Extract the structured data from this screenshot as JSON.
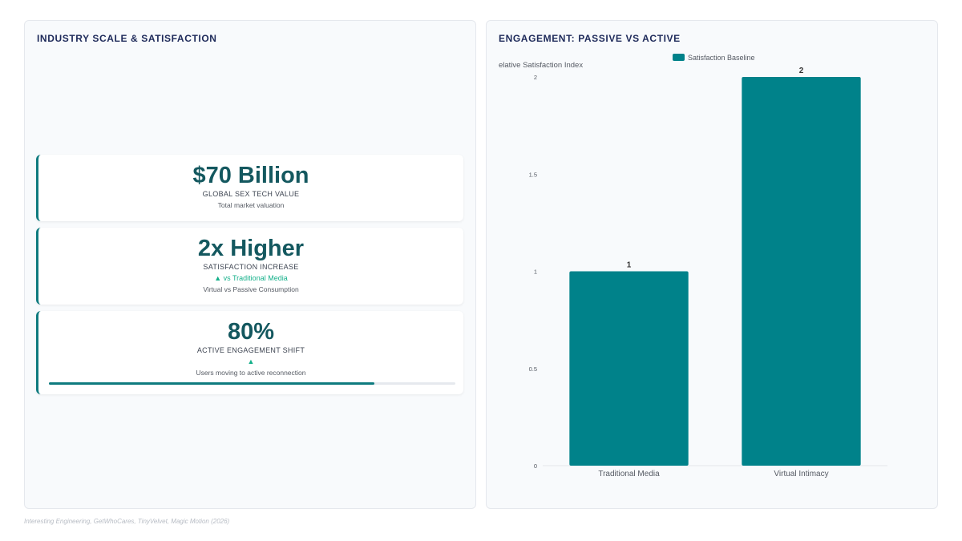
{
  "left_panel": {
    "title": "INDUSTRY SCALE & SATISFACTION",
    "cards": [
      {
        "value": "$70 Billion",
        "label": "GLOBAL SEX TECH VALUE",
        "sub": "Total market valuation"
      },
      {
        "value": "2x Higher",
        "label": "SATISFACTION INCREASE",
        "trend": "▲ vs Traditional Media",
        "sub": "Virtual vs Passive Consumption"
      },
      {
        "value": "80%",
        "label": "ACTIVE ENGAGEMENT SHIFT",
        "trend": "▲",
        "sub": "Users moving to active reconnection",
        "progress": 0.8
      }
    ]
  },
  "right_panel": {
    "title": "ENGAGEMENT: PASSIVE VS ACTIVE"
  },
  "chart_data": {
    "type": "bar",
    "categories": [
      "Traditional Media",
      "Virtual Intimacy"
    ],
    "series": [
      {
        "name": "Satisfaction Baseline",
        "values": [
          1,
          2
        ]
      }
    ],
    "ylabel": "elative Satisfaction Index",
    "ylim": [
      0,
      2
    ],
    "yticks": [
      "0",
      "0.5",
      "1",
      "1.5",
      "2"
    ],
    "data_labels": [
      "1",
      "2"
    ],
    "legend": "top",
    "grid": false,
    "bar_color": "#00828a"
  },
  "footer": {
    "source": "Interesting Engineering, GetWhoCares, TinyVelvet, Magic Motion (2026)"
  },
  "colors": {
    "accent": "#0e7b7f",
    "kpi_value": "#14585f",
    "trend": "#14b08a",
    "title": "#1e2a5a"
  }
}
